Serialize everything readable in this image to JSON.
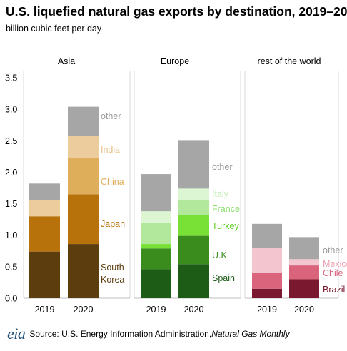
{
  "chart_data": {
    "type": "bar",
    "stacked": true,
    "title": "U.S. liquefied natural gas exports by destination, 2019–20",
    "subtitle": "billion cubic feet per day",
    "ylim": [
      0,
      3.5
    ],
    "yticks": [
      "0.0",
      "0.5",
      "1.0",
      "1.5",
      "2.0",
      "2.5",
      "3.0",
      "3.5"
    ],
    "grid": false,
    "panels": [
      {
        "name": "Asia",
        "categories": [
          "2019",
          "2020"
        ],
        "series": [
          {
            "name": "South Korea",
            "values": [
              0.74,
              0.86
            ],
            "color": "#5c3d0e",
            "label_color": "#5c3d0e"
          },
          {
            "name": "Japan",
            "values": [
              0.56,
              0.79
            ],
            "color": "#b8720b",
            "label_color": "#b8720b"
          },
          {
            "name": "China",
            "values": [
              0.0,
              0.58
            ],
            "color": "#deae5a",
            "label_color": "#deae5a"
          },
          {
            "name": "India",
            "values": [
              0.26,
              0.35
            ],
            "color": "#eccb9c",
            "label_color": "#e6bf86"
          },
          {
            "name": "other",
            "values": [
              0.26,
              0.46
            ],
            "color": "#a6a6a6",
            "label_color": "#9a9a9a"
          }
        ]
      },
      {
        "name": "Europe",
        "categories": [
          "2019",
          "2020"
        ],
        "series": [
          {
            "name": "Spain",
            "values": [
              0.46,
              0.54
            ],
            "color": "#1c5c17",
            "label_color": "#1c5c17"
          },
          {
            "name": "U.K.",
            "values": [
              0.33,
              0.45
            ],
            "color": "#3a8c1c",
            "label_color": "#3a8c1c"
          },
          {
            "name": "Turkey",
            "values": [
              0.07,
              0.33
            ],
            "color": "#79e035",
            "label_color": "#5ecf21"
          },
          {
            "name": "France",
            "values": [
              0.34,
              0.24
            ],
            "color": "#b1e89b",
            "label_color": "#8fdc72"
          },
          {
            "name": "Italy",
            "values": [
              0.18,
              0.18
            ],
            "color": "#dcf6d3",
            "label_color": "#c4eeb2"
          },
          {
            "name": "other",
            "values": [
              0.59,
              0.77
            ],
            "color": "#a6a6a6",
            "label_color": "#9a9a9a"
          }
        ]
      },
      {
        "name": "rest of the world",
        "categories": [
          "2019",
          "2020"
        ],
        "series": [
          {
            "name": "Brazil",
            "values": [
              0.15,
              0.3
            ],
            "color": "#7a1830",
            "label_color": "#7a1830"
          },
          {
            "name": "Chile",
            "values": [
              0.25,
              0.22
            ],
            "color": "#d9647c",
            "label_color": "#d9647c"
          },
          {
            "name": "Mexico",
            "values": [
              0.4,
              0.1
            ],
            "color": "#f2c5cf",
            "label_color": "#ec9fb1"
          },
          {
            "name": "other",
            "values": [
              0.38,
              0.35
            ],
            "color": "#a6a6a6",
            "label_color": "#9a9a9a"
          }
        ]
      }
    ]
  },
  "source": {
    "logo": "eia",
    "text": "Source: U.S. Energy Information Administration, ",
    "publication": "Natural Gas Monthly"
  }
}
